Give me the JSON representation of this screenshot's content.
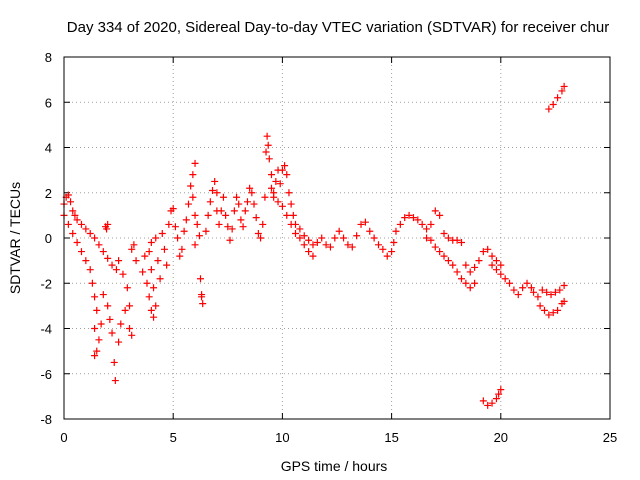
{
  "chart_data": {
    "type": "scatter",
    "title": "Day 334 of 2020, Sidereal Day-to-day VTEC variation (SDTVAR) for receiver chur",
    "xlabel": "GPS time / hours",
    "ylabel": "SDTVAR / TECUs",
    "xlim": [
      0,
      25
    ],
    "ylim": [
      -8,
      8
    ],
    "xticks": [
      0,
      5,
      10,
      15,
      20,
      25
    ],
    "yticks": [
      -8,
      -6,
      -4,
      -2,
      0,
      2,
      4,
      6,
      8
    ],
    "grid": true,
    "marker": "+",
    "color": "#ff0000",
    "series": [
      {
        "name": "SDTVAR",
        "points": [
          [
            0.0,
            1.5
          ],
          [
            0.1,
            1.8
          ],
          [
            0.2,
            1.9
          ],
          [
            0.3,
            1.6
          ],
          [
            0.4,
            1.2
          ],
          [
            0.5,
            1.0
          ],
          [
            0.6,
            0.8
          ],
          [
            0.8,
            0.6
          ],
          [
            1.0,
            0.4
          ],
          [
            1.2,
            0.2
          ],
          [
            1.4,
            0.0
          ],
          [
            1.6,
            -0.3
          ],
          [
            1.8,
            -0.6
          ],
          [
            2.0,
            -0.9
          ],
          [
            2.2,
            -1.2
          ],
          [
            2.4,
            -1.4
          ],
          [
            0.0,
            1.0
          ],
          [
            0.2,
            0.6
          ],
          [
            0.4,
            0.2
          ],
          [
            0.6,
            -0.2
          ],
          [
            0.8,
            -0.6
          ],
          [
            1.0,
            -1.0
          ],
          [
            1.2,
            -1.4
          ],
          [
            1.3,
            -2.0
          ],
          [
            1.4,
            -2.6
          ],
          [
            1.5,
            -3.2
          ],
          [
            1.4,
            -4.0
          ],
          [
            1.5,
            -5.0
          ],
          [
            1.4,
            -5.2
          ],
          [
            1.6,
            -4.5
          ],
          [
            1.7,
            -3.8
          ],
          [
            1.8,
            -2.5
          ],
          [
            2.0,
            -3.0
          ],
          [
            2.1,
            -3.6
          ],
          [
            2.2,
            -4.2
          ],
          [
            2.3,
            -5.5
          ],
          [
            2.35,
            -6.3
          ],
          [
            2.5,
            -4.6
          ],
          [
            2.6,
            -3.8
          ],
          [
            2.8,
            -3.2
          ],
          [
            3.0,
            -4.0
          ],
          [
            3.1,
            -4.3
          ],
          [
            3.0,
            -3.0
          ],
          [
            2.9,
            -2.2
          ],
          [
            2.7,
            -1.6
          ],
          [
            2.5,
            -1.0
          ],
          [
            1.9,
            0.5
          ],
          [
            2.0,
            0.6
          ],
          [
            1.95,
            0.4
          ],
          [
            3.1,
            -0.5
          ],
          [
            3.2,
            -0.3
          ],
          [
            3.3,
            -1.0
          ],
          [
            3.6,
            -1.5
          ],
          [
            3.7,
            -0.8
          ],
          [
            3.8,
            -2.0
          ],
          [
            3.9,
            -2.6
          ],
          [
            4.0,
            -3.2
          ],
          [
            4.1,
            -3.5
          ],
          [
            4.2,
            -3.0
          ],
          [
            4.1,
            -2.2
          ],
          [
            4.0,
            -1.4
          ],
          [
            3.9,
            -0.6
          ],
          [
            4.0,
            -0.2
          ],
          [
            4.2,
            0.0
          ],
          [
            4.3,
            -1.0
          ],
          [
            4.4,
            -1.8
          ],
          [
            4.5,
            0.2
          ],
          [
            4.6,
            -0.5
          ],
          [
            4.7,
            -1.2
          ],
          [
            4.8,
            0.6
          ],
          [
            4.9,
            1.2
          ],
          [
            5.0,
            1.3
          ],
          [
            5.1,
            0.5
          ],
          [
            5.2,
            0.0
          ],
          [
            5.3,
            -0.8
          ],
          [
            5.4,
            -0.5
          ],
          [
            5.5,
            0.3
          ],
          [
            5.6,
            0.8
          ],
          [
            5.7,
            1.5
          ],
          [
            5.8,
            2.3
          ],
          [
            5.9,
            2.8
          ],
          [
            6.0,
            3.3
          ],
          [
            5.9,
            1.8
          ],
          [
            6.0,
            1.0
          ],
          [
            6.1,
            0.6
          ],
          [
            6.0,
            -0.3
          ],
          [
            6.2,
            0.1
          ],
          [
            6.25,
            -1.8
          ],
          [
            6.3,
            -2.6
          ],
          [
            6.35,
            -2.9
          ],
          [
            6.3,
            -2.5
          ],
          [
            6.5,
            0.3
          ],
          [
            6.6,
            1.0
          ],
          [
            6.7,
            1.6
          ],
          [
            6.8,
            2.1
          ],
          [
            6.9,
            2.5
          ],
          [
            7.0,
            2.0
          ],
          [
            7.0,
            1.2
          ],
          [
            7.1,
            0.6
          ],
          [
            7.2,
            1.2
          ],
          [
            7.3,
            1.8
          ],
          [
            7.4,
            1.0
          ],
          [
            7.5,
            0.5
          ],
          [
            7.6,
            -0.1
          ],
          [
            7.7,
            0.4
          ],
          [
            7.8,
            1.2
          ],
          [
            7.9,
            1.8
          ],
          [
            8.0,
            1.5
          ],
          [
            8.1,
            0.8
          ],
          [
            8.2,
            0.5
          ],
          [
            8.3,
            1.2
          ],
          [
            8.4,
            1.6
          ],
          [
            8.5,
            2.2
          ],
          [
            8.6,
            2.0
          ],
          [
            8.7,
            1.5
          ],
          [
            8.8,
            0.9
          ],
          [
            8.9,
            0.2
          ],
          [
            9.0,
            0.0
          ],
          [
            9.1,
            0.6
          ],
          [
            9.2,
            1.8
          ],
          [
            9.25,
            3.8
          ],
          [
            9.3,
            4.5
          ],
          [
            9.35,
            4.1
          ],
          [
            9.4,
            3.5
          ],
          [
            9.5,
            2.8
          ],
          [
            9.6,
            2.0
          ],
          [
            9.7,
            2.5
          ],
          [
            9.8,
            3.0
          ],
          [
            9.9,
            2.4
          ],
          [
            10.0,
            3.0
          ],
          [
            10.1,
            3.2
          ],
          [
            10.2,
            2.8
          ],
          [
            10.3,
            2.0
          ],
          [
            10.4,
            1.5
          ],
          [
            10.5,
            1.0
          ],
          [
            10.6,
            0.6
          ],
          [
            9.5,
            2.2
          ],
          [
            9.6,
            1.8
          ],
          [
            9.8,
            1.6
          ],
          [
            10.0,
            1.4
          ],
          [
            10.2,
            1.0
          ],
          [
            10.4,
            0.6
          ],
          [
            10.6,
            0.2
          ],
          [
            10.8,
            0.0
          ],
          [
            11.0,
            -0.3
          ],
          [
            11.2,
            -0.6
          ],
          [
            11.4,
            -0.8
          ],
          [
            10.8,
            0.4
          ],
          [
            11.0,
            0.1
          ],
          [
            11.2,
            -0.1
          ],
          [
            11.4,
            -0.3
          ],
          [
            11.6,
            -0.2
          ],
          [
            11.8,
            0.0
          ],
          [
            12.0,
            -0.3
          ],
          [
            12.2,
            -0.4
          ],
          [
            12.4,
            0.0
          ],
          [
            12.6,
            0.3
          ],
          [
            12.8,
            0.0
          ],
          [
            13.0,
            -0.3
          ],
          [
            13.2,
            -0.4
          ],
          [
            13.4,
            0.1
          ],
          [
            13.6,
            0.6
          ],
          [
            13.8,
            0.7
          ],
          [
            14.0,
            0.3
          ],
          [
            14.2,
            0.0
          ],
          [
            14.4,
            -0.3
          ],
          [
            14.6,
            -0.5
          ],
          [
            14.8,
            -0.8
          ],
          [
            15.0,
            -0.6
          ],
          [
            15.1,
            -0.2
          ],
          [
            15.2,
            0.3
          ],
          [
            15.4,
            0.6
          ],
          [
            15.6,
            0.9
          ],
          [
            15.8,
            1.0
          ],
          [
            16.0,
            0.9
          ],
          [
            16.2,
            0.8
          ],
          [
            16.4,
            0.6
          ],
          [
            16.6,
            0.0
          ],
          [
            16.8,
            0.6
          ],
          [
            17.0,
            1.2
          ],
          [
            17.2,
            1.0
          ],
          [
            17.4,
            0.2
          ],
          [
            17.6,
            0.0
          ],
          [
            17.8,
            -0.1
          ],
          [
            18.0,
            -0.1
          ],
          [
            18.2,
            -0.2
          ],
          [
            16.6,
            0.4
          ],
          [
            16.8,
            -0.1
          ],
          [
            17.0,
            -0.4
          ],
          [
            17.2,
            -0.6
          ],
          [
            17.4,
            -0.8
          ],
          [
            17.6,
            -1.0
          ],
          [
            17.8,
            -1.2
          ],
          [
            18.0,
            -1.5
          ],
          [
            18.2,
            -1.8
          ],
          [
            18.4,
            -2.0
          ],
          [
            18.6,
            -2.2
          ],
          [
            18.8,
            -2.0
          ],
          [
            18.4,
            -1.2
          ],
          [
            18.6,
            -1.5
          ],
          [
            18.8,
            -1.3
          ],
          [
            19.0,
            -1.0
          ],
          [
            19.2,
            -0.6
          ],
          [
            19.4,
            -0.5
          ],
          [
            19.6,
            -0.8
          ],
          [
            19.8,
            -1.0
          ],
          [
            20.0,
            -1.2
          ],
          [
            19.6,
            -1.2
          ],
          [
            19.8,
            -1.4
          ],
          [
            20.0,
            -1.6
          ],
          [
            20.2,
            -1.8
          ],
          [
            20.4,
            -2.0
          ],
          [
            20.6,
            -2.3
          ],
          [
            20.8,
            -2.5
          ],
          [
            21.0,
            -2.2
          ],
          [
            21.2,
            -2.0
          ],
          [
            21.4,
            -2.2
          ],
          [
            21.5,
            -2.4
          ],
          [
            21.7,
            -2.6
          ],
          [
            21.9,
            -2.3
          ],
          [
            22.1,
            -2.4
          ],
          [
            22.3,
            -2.5
          ],
          [
            22.5,
            -2.4
          ],
          [
            22.7,
            -2.3
          ],
          [
            22.9,
            -2.1
          ],
          [
            21.8,
            -3.0
          ],
          [
            22.0,
            -3.2
          ],
          [
            22.2,
            -3.4
          ],
          [
            22.4,
            -3.3
          ],
          [
            22.6,
            -3.2
          ],
          [
            22.8,
            -2.9
          ],
          [
            22.9,
            -2.8
          ],
          [
            19.2,
            -7.2
          ],
          [
            19.4,
            -7.4
          ],
          [
            19.6,
            -7.3
          ],
          [
            19.8,
            -7.1
          ],
          [
            19.9,
            -6.9
          ],
          [
            20.0,
            -6.7
          ],
          [
            22.2,
            5.7
          ],
          [
            22.4,
            5.9
          ],
          [
            22.6,
            6.2
          ],
          [
            22.8,
            6.5
          ],
          [
            22.9,
            6.7
          ]
        ]
      }
    ]
  }
}
